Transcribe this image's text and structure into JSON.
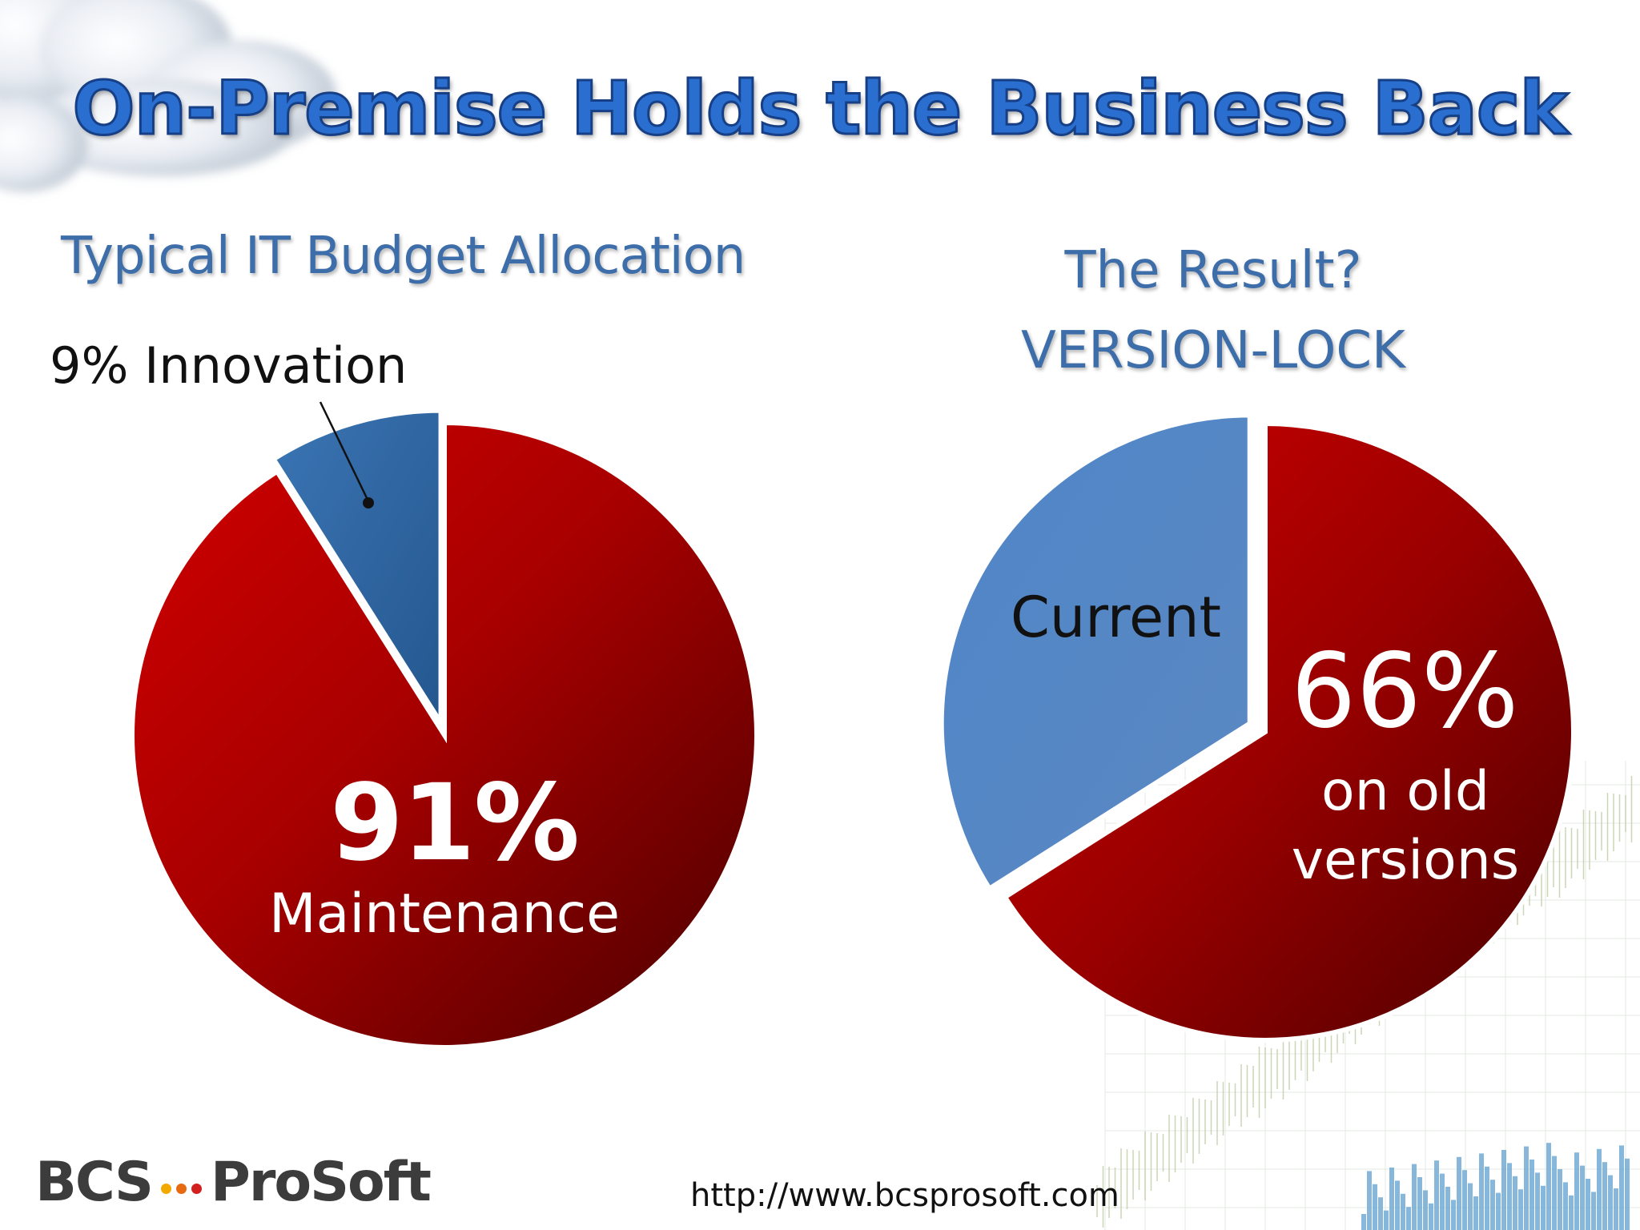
{
  "title": "On-Premise Holds the Business Back",
  "colors": {
    "title": "#2a6fd0",
    "subtitle": "#3d6ea9",
    "maintenance_red": "#c00000",
    "innovation_blue": "#2e67a4",
    "current_blue": "#5283c4",
    "old_red": "#b00000"
  },
  "chart_data": [
    {
      "type": "pie",
      "title": "Typical IT Budget Allocation",
      "slices": [
        {
          "label": "Innovation",
          "value": 9,
          "color": "#2e67a4",
          "exploded": true
        },
        {
          "label": "Maintenance",
          "value": 91,
          "color": "#c00000",
          "exploded": false
        }
      ],
      "labels": {
        "innovation": "9% Innovation",
        "maintenance_pct": "91%",
        "maintenance_text": "Maintenance"
      }
    },
    {
      "type": "pie",
      "title_lines": [
        "The Result?",
        "VERSION-LOCK"
      ],
      "slices": [
        {
          "label": "on old versions",
          "value": 66,
          "color": "#b00000",
          "exploded": false
        },
        {
          "label": "Current",
          "value": 34,
          "color": "#5283c4",
          "exploded": true
        }
      ],
      "labels": {
        "current": "Current",
        "old_pct": "66%",
        "old_text": "on old versions"
      }
    }
  ],
  "logo": {
    "left": "BCS",
    "right": "ProSoft",
    "dot_colors": [
      "#f2a900",
      "#e86a10",
      "#d21f1f"
    ]
  },
  "footer_url": "http://www.bcsprosoft.com"
}
